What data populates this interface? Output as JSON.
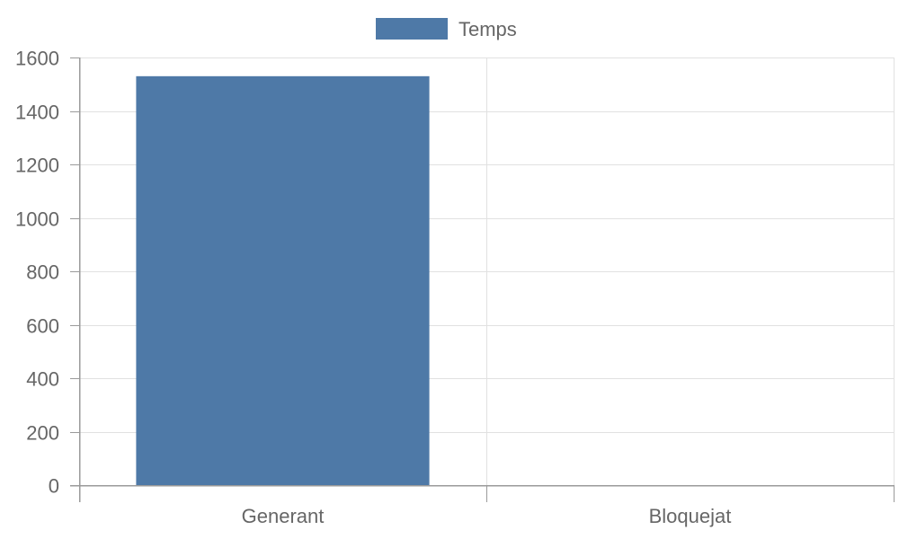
{
  "chart_data": {
    "type": "bar",
    "categories": [
      "Generant",
      "Bloquejat"
    ],
    "series": [
      {
        "name": "Temps",
        "values": [
          1530,
          0
        ],
        "color": "#4e79a7"
      }
    ],
    "ylim": [
      0,
      1600
    ],
    "yticks": [
      0,
      200,
      400,
      600,
      800,
      1000,
      1200,
      1400,
      1600
    ],
    "grid": true,
    "legend_position": "top-center"
  }
}
